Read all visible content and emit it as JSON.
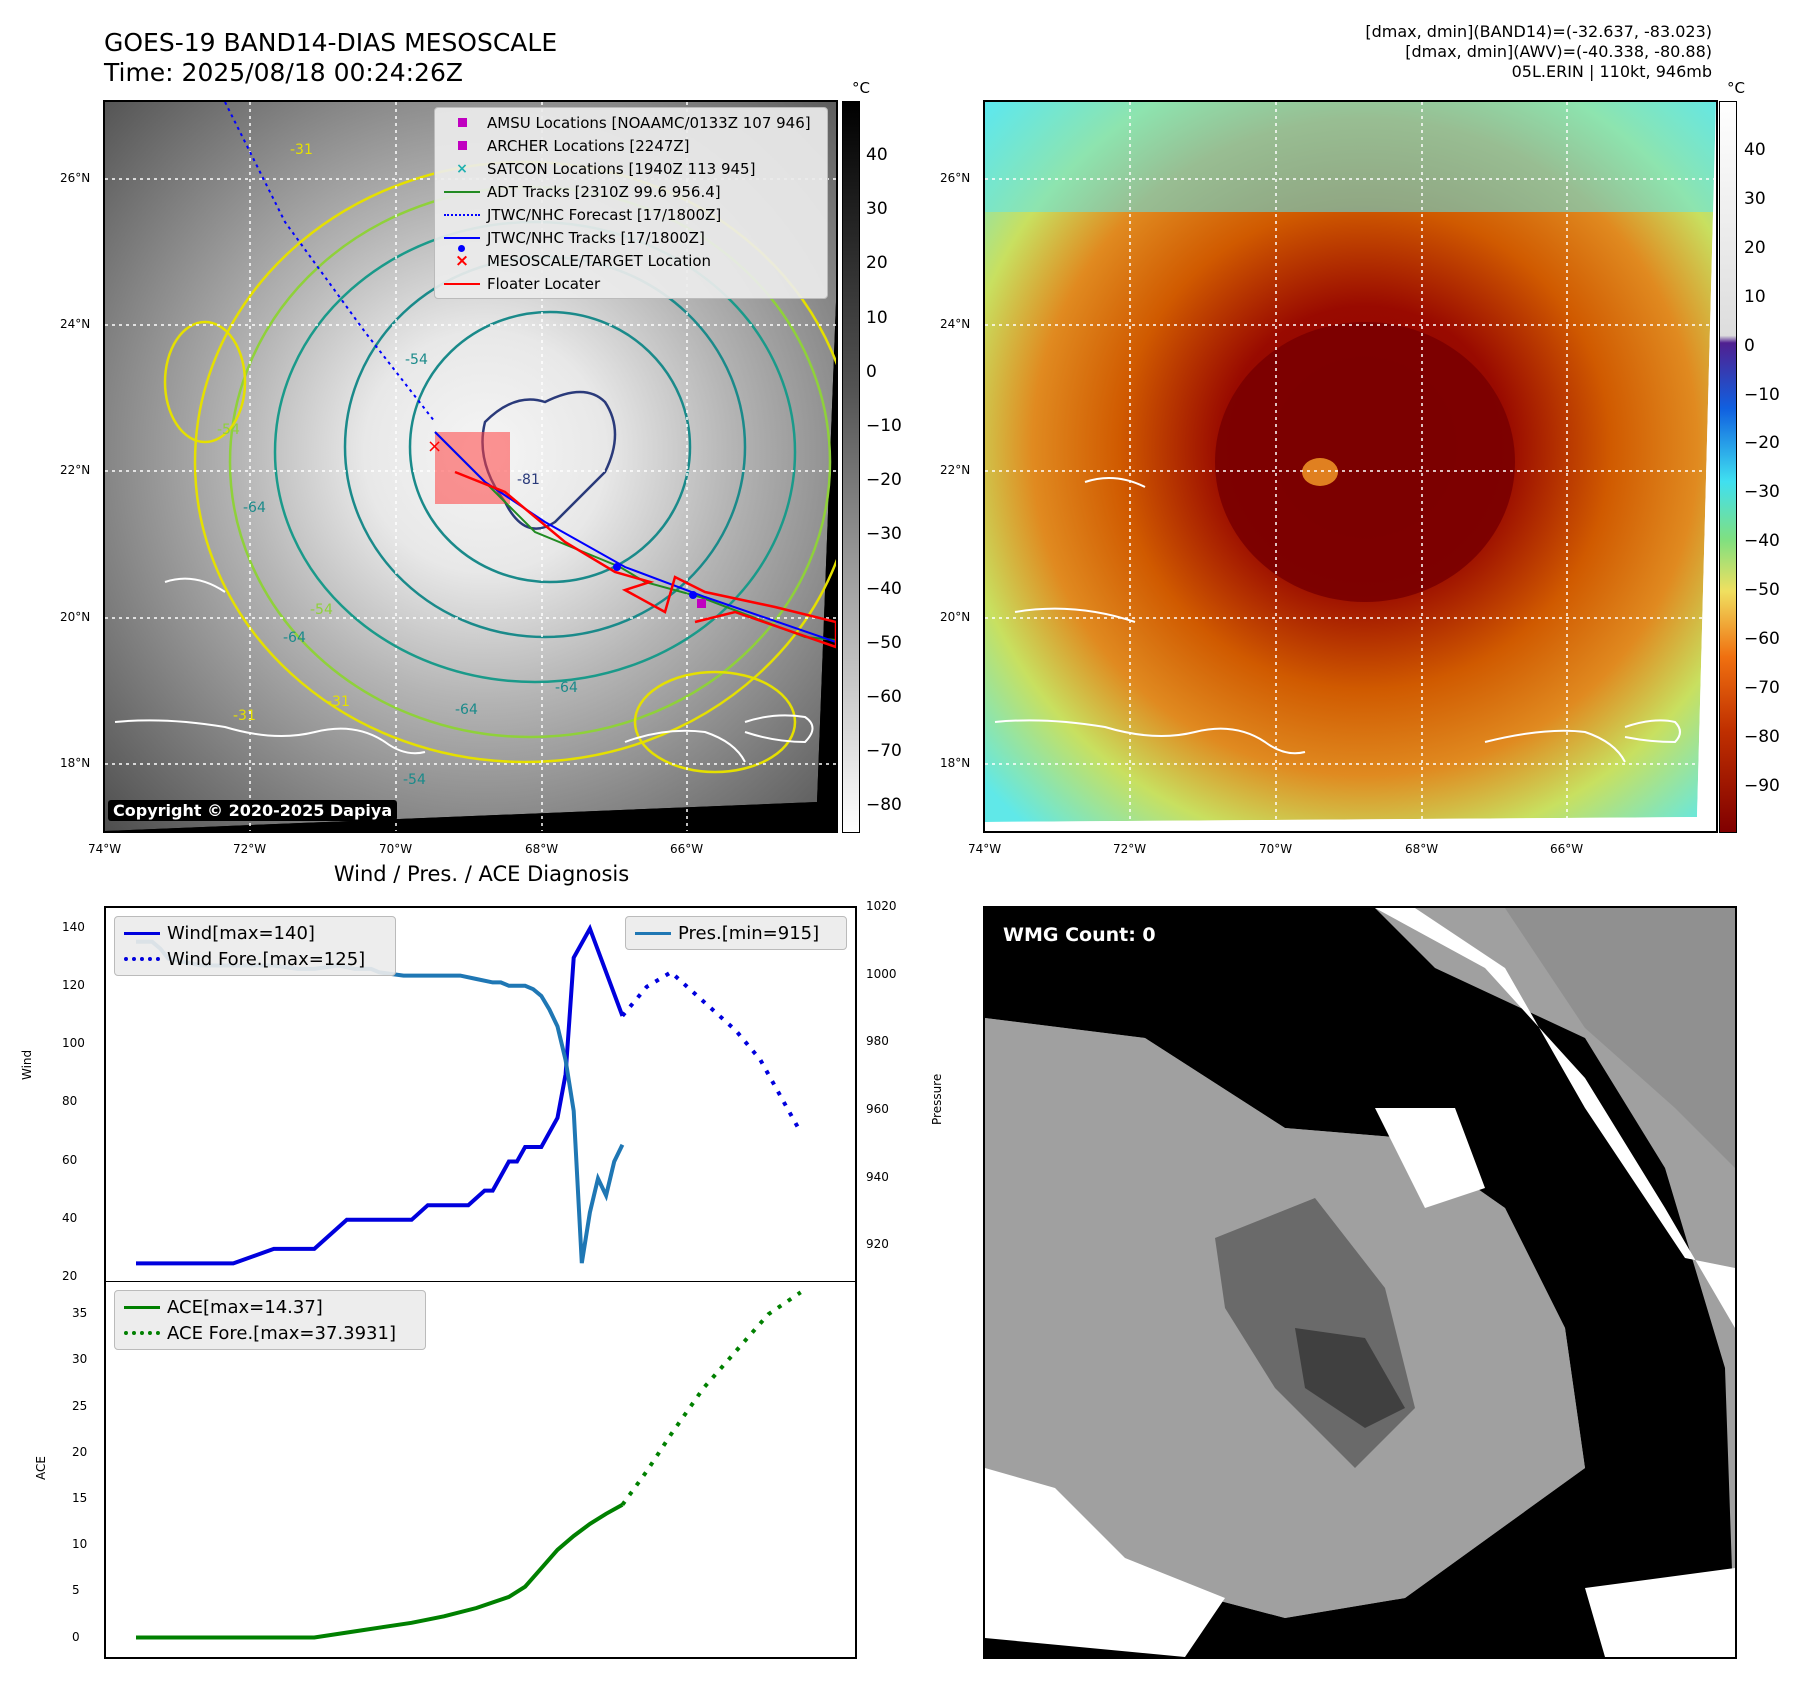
{
  "header": {
    "title_line1": "GOES-19 BAND14-DIAS MESOSCALE",
    "title_line2": "Time: 2025/08/18 00:24:26Z",
    "info_line1": "[dmax, dmin](BAND14)=(-32.637, -83.023)",
    "info_line2": "[dmax, dmin](AWV)=(-40.338, -80.88)",
    "info_line3": "05L.ERIN | 110kt, 946mb"
  },
  "map": {
    "lon_labels": [
      "74°W",
      "72°W",
      "70°W",
      "68°W",
      "66°W"
    ],
    "lat_labels": [
      "26°N",
      "24°N",
      "22°N",
      "20°N",
      "18°N"
    ],
    "lon_labels_right": [
      "74°W",
      "72°W",
      "70°W",
      "68°W",
      "66°W"
    ],
    "contour_labels": [
      "-31",
      "-54",
      "-64",
      "-81",
      "-54",
      "-64",
      "-31",
      "-54",
      "-64",
      "-31",
      "-54",
      "-64"
    ],
    "copyright": "Copyright © 2020-2025 Dapiya",
    "legend": [
      "AMSU Locations [NOAAMC/0133Z 107 946]",
      "ARCHER Locations [2247Z]",
      "SATCON Locations [1940Z 113 945]",
      "ADT Tracks [2310Z 99.6 956.4]",
      "JTWC/NHC Forecast [17/1800Z]",
      "JTWC/NHC Tracks [17/1800Z]",
      "MESOSCALE/TARGET Location",
      "Floater Locater"
    ],
    "colors": {
      "amsu": "#c000c0",
      "archer": "#c000c0",
      "satcon": "#20b0b0",
      "adt": "#228b22",
      "forecast": "#0000ff",
      "tracks": "#0000ff",
      "target": "#ff0000",
      "floater": "#ff0000"
    }
  },
  "colorbar_left": {
    "unit": "°C",
    "ticks": [
      "40",
      "30",
      "20",
      "10",
      "0",
      "−10",
      "−20",
      "−30",
      "−40",
      "−50",
      "−60",
      "−70",
      "−80"
    ]
  },
  "colorbar_right": {
    "unit": "°C",
    "ticks": [
      "40",
      "30",
      "20",
      "10",
      "0",
      "−10",
      "−20",
      "−30",
      "−40",
      "−50",
      "−60",
      "−70",
      "−80",
      "−90"
    ]
  },
  "wmg": {
    "label": "WMG Count: 0"
  },
  "chart_data": [
    {
      "type": "line",
      "title": "Wind / Pres. / ACE Diagnosis",
      "ylabel": "Wind",
      "ylabel_right": "Pressure",
      "ylim": [
        20,
        145
      ],
      "ylim_right": [
        910,
        1020
      ],
      "yticks": [
        "140",
        "120",
        "100",
        "80",
        "60",
        "40",
        "20"
      ],
      "yticks_right": [
        "1020",
        "1000",
        "980",
        "960",
        "940",
        "920"
      ],
      "grid": false,
      "legend_left": [
        "Wind[max=140]",
        "Wind Fore.[max=125]"
      ],
      "legend_right": [
        "Pres.[min=915]"
      ],
      "series": [
        {
          "name": "Wind[max=140]",
          "color": "#0000dd",
          "style": "solid",
          "x": [
            0,
            8,
            12,
            17,
            22,
            26,
            28,
            31,
            34,
            36,
            39,
            41,
            43,
            44,
            45,
            46,
            47,
            48,
            50,
            52,
            53,
            54,
            56,
            60
          ],
          "values": [
            25,
            25,
            25,
            30,
            30,
            40,
            40,
            40,
            40,
            45,
            45,
            45,
            50,
            50,
            55,
            60,
            60,
            65,
            65,
            75,
            90,
            130,
            140,
            110
          ]
        },
        {
          "name": "Wind Fore.[max=125]",
          "color": "#0000dd",
          "style": "dotted",
          "x": [
            60,
            63,
            66,
            70,
            74,
            77,
            79,
            80,
            81,
            82
          ],
          "values": [
            110,
            120,
            125,
            115,
            105,
            95,
            85,
            80,
            75,
            70
          ]
        },
        {
          "name": "Pres.[min=915]",
          "color": "#1f77b4",
          "style": "solid",
          "x": [
            0,
            1,
            2,
            3,
            4,
            6,
            8,
            14,
            17,
            20,
            22,
            25,
            27,
            29,
            30,
            33,
            35,
            38,
            40,
            42,
            44,
            45,
            46,
            48,
            49,
            50,
            51,
            52,
            53,
            54,
            55,
            56,
            57,
            58,
            59,
            60
          ],
          "values": [
            1010,
            1010,
            1010,
            1008,
            1005,
            1004,
            1003,
            1003,
            1003,
            1002,
            1002,
            1003,
            1002,
            1002,
            1001,
            1000,
            1000,
            1000,
            1000,
            999,
            998,
            998,
            997,
            997,
            996,
            994,
            990,
            985,
            975,
            960,
            915,
            930,
            940,
            935,
            945,
            950
          ]
        }
      ]
    },
    {
      "type": "line",
      "ylabel": "ACE",
      "ylim": [
        -2,
        38.5
      ],
      "yticks": [
        "35",
        "30",
        "25",
        "20",
        "15",
        "10",
        "5",
        "0"
      ],
      "grid": false,
      "legend": [
        "ACE[max=14.37]",
        "ACE Fore.[max=37.3931]"
      ],
      "series": [
        {
          "name": "ACE[max=14.37]",
          "color": "#008000",
          "style": "solid",
          "x": [
            0,
            10,
            17,
            22,
            28,
            34,
            38,
            42,
            46,
            48,
            50,
            52,
            54,
            56,
            58,
            60
          ],
          "values": [
            0,
            0,
            0,
            0,
            0.8,
            1.6,
            2.3,
            3.2,
            4.4,
            5.5,
            7.5,
            9.5,
            11,
            12.3,
            13.4,
            14.37
          ]
        },
        {
          "name": "ACE Fore.[max=37.3931]",
          "color": "#008000",
          "style": "dotted",
          "x": [
            60,
            63,
            66,
            70,
            74,
            78,
            82
          ],
          "values": [
            14.37,
            18,
            22,
            27,
            31,
            35,
            37.39
          ]
        }
      ]
    }
  ]
}
